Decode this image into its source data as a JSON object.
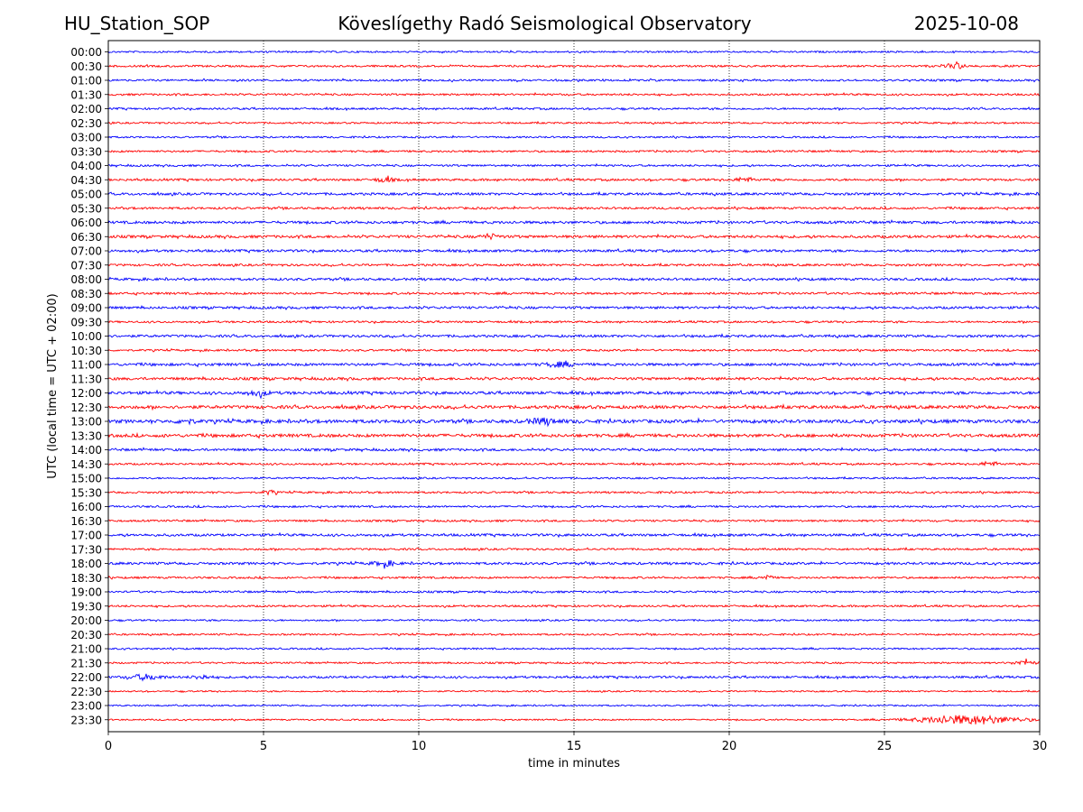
{
  "header": {
    "station": "HU_Station_SOP",
    "observatory": "Köveslígethy Radó Seismological Observatory",
    "date": "2025-10-08"
  },
  "chart_data": {
    "type": "line",
    "title": "Köveslígethy Radó Seismological Observatory",
    "xlabel": "time in minutes",
    "ylabel": "UTC (local time = UTC + 02:00)",
    "xlim": [
      0,
      30
    ],
    "xticks": [
      0,
      5,
      10,
      15,
      20,
      25,
      30
    ],
    "grid_x": [
      5,
      10,
      15,
      20,
      25
    ],
    "colors": [
      "#0000ff",
      "#ff0000"
    ],
    "traces": [
      {
        "label": "00:00",
        "color": "#0000ff",
        "noise": 0.7,
        "bursts": []
      },
      {
        "label": "00:30",
        "color": "#ff0000",
        "noise": 0.8,
        "bursts": [
          [
            27.3,
            0.3,
            2.2
          ]
        ]
      },
      {
        "label": "01:00",
        "color": "#0000ff",
        "noise": 0.8,
        "bursts": []
      },
      {
        "label": "01:30",
        "color": "#ff0000",
        "noise": 0.8,
        "bursts": []
      },
      {
        "label": "02:00",
        "color": "#0000ff",
        "noise": 0.8,
        "bursts": []
      },
      {
        "label": "02:30",
        "color": "#ff0000",
        "noise": 0.7,
        "bursts": []
      },
      {
        "label": "03:00",
        "color": "#0000ff",
        "noise": 0.7,
        "bursts": []
      },
      {
        "label": "03:30",
        "color": "#ff0000",
        "noise": 0.8,
        "bursts": []
      },
      {
        "label": "04:00",
        "color": "#0000ff",
        "noise": 0.8,
        "bursts": []
      },
      {
        "label": "04:30",
        "color": "#ff0000",
        "noise": 0.9,
        "bursts": [
          [
            8.9,
            0.3,
            1.8
          ],
          [
            20.5,
            0.3,
            1.8
          ]
        ]
      },
      {
        "label": "05:00",
        "color": "#0000ff",
        "noise": 1.0,
        "bursts": []
      },
      {
        "label": "05:30",
        "color": "#ff0000",
        "noise": 0.9,
        "bursts": []
      },
      {
        "label": "06:00",
        "color": "#0000ff",
        "noise": 1.1,
        "bursts": []
      },
      {
        "label": "06:30",
        "color": "#ff0000",
        "noise": 1.1,
        "bursts": [
          [
            12.3,
            0.3,
            1.8
          ]
        ]
      },
      {
        "label": "07:00",
        "color": "#0000ff",
        "noise": 1.0,
        "bursts": []
      },
      {
        "label": "07:30",
        "color": "#ff0000",
        "noise": 0.9,
        "bursts": []
      },
      {
        "label": "08:00",
        "color": "#0000ff",
        "noise": 1.0,
        "bursts": []
      },
      {
        "label": "08:30",
        "color": "#ff0000",
        "noise": 0.9,
        "bursts": []
      },
      {
        "label": "09:00",
        "color": "#0000ff",
        "noise": 1.0,
        "bursts": []
      },
      {
        "label": "09:30",
        "color": "#ff0000",
        "noise": 0.8,
        "bursts": []
      },
      {
        "label": "10:00",
        "color": "#0000ff",
        "noise": 1.0,
        "bursts": []
      },
      {
        "label": "10:30",
        "color": "#ff0000",
        "noise": 0.8,
        "bursts": []
      },
      {
        "label": "11:00",
        "color": "#0000ff",
        "noise": 1.1,
        "bursts": [
          [
            14.5,
            0.5,
            1.6
          ]
        ]
      },
      {
        "label": "11:30",
        "color": "#ff0000",
        "noise": 1.1,
        "bursts": []
      },
      {
        "label": "12:00",
        "color": "#0000ff",
        "noise": 1.2,
        "bursts": [
          [
            4.8,
            0.4,
            1.6
          ]
        ]
      },
      {
        "label": "12:30",
        "color": "#ff0000",
        "noise": 1.3,
        "bursts": []
      },
      {
        "label": "13:00",
        "color": "#0000ff",
        "noise": 1.4,
        "bursts": [
          [
            14.0,
            0.6,
            1.8
          ],
          [
            2.5,
            0.3,
            1.6
          ]
        ]
      },
      {
        "label": "13:30",
        "color": "#ff0000",
        "noise": 1.3,
        "bursts": []
      },
      {
        "label": "14:00",
        "color": "#0000ff",
        "noise": 1.0,
        "bursts": []
      },
      {
        "label": "14:30",
        "color": "#ff0000",
        "noise": 0.8,
        "bursts": [
          [
            28.4,
            0.3,
            1.8
          ]
        ]
      },
      {
        "label": "15:00",
        "color": "#0000ff",
        "noise": 0.7,
        "bursts": []
      },
      {
        "label": "15:30",
        "color": "#ff0000",
        "noise": 0.8,
        "bursts": [
          [
            5.2,
            0.2,
            1.6
          ]
        ]
      },
      {
        "label": "16:00",
        "color": "#0000ff",
        "noise": 0.8,
        "bursts": []
      },
      {
        "label": "16:30",
        "color": "#ff0000",
        "noise": 0.8,
        "bursts": []
      },
      {
        "label": "17:00",
        "color": "#0000ff",
        "noise": 1.0,
        "bursts": []
      },
      {
        "label": "17:30",
        "color": "#ff0000",
        "noise": 0.8,
        "bursts": []
      },
      {
        "label": "18:00",
        "color": "#0000ff",
        "noise": 1.0,
        "bursts": [
          [
            8.9,
            0.4,
            1.8
          ]
        ]
      },
      {
        "label": "18:30",
        "color": "#ff0000",
        "noise": 0.8,
        "bursts": [
          [
            21.2,
            0.2,
            2.0
          ]
        ]
      },
      {
        "label": "19:00",
        "color": "#0000ff",
        "noise": 0.8,
        "bursts": []
      },
      {
        "label": "19:30",
        "color": "#ff0000",
        "noise": 0.8,
        "bursts": []
      },
      {
        "label": "20:00",
        "color": "#0000ff",
        "noise": 0.7,
        "bursts": []
      },
      {
        "label": "20:30",
        "color": "#ff0000",
        "noise": 0.7,
        "bursts": []
      },
      {
        "label": "21:00",
        "color": "#0000ff",
        "noise": 0.7,
        "bursts": []
      },
      {
        "label": "21:30",
        "color": "#ff0000",
        "noise": 0.7,
        "bursts": [
          [
            29.5,
            0.4,
            1.6
          ]
        ]
      },
      {
        "label": "22:00",
        "color": "#0000ff",
        "noise": 0.9,
        "bursts": [
          [
            1.2,
            0.6,
            2.0
          ],
          [
            3.0,
            0.3,
            1.6
          ]
        ]
      },
      {
        "label": "22:30",
        "color": "#ff0000",
        "noise": 0.6,
        "bursts": []
      },
      {
        "label": "23:00",
        "color": "#0000ff",
        "noise": 0.6,
        "bursts": []
      },
      {
        "label": "23:30",
        "color": "#ff0000",
        "noise": 0.6,
        "bursts": [
          [
            27.7,
            1.8,
            3.6
          ]
        ]
      }
    ]
  }
}
